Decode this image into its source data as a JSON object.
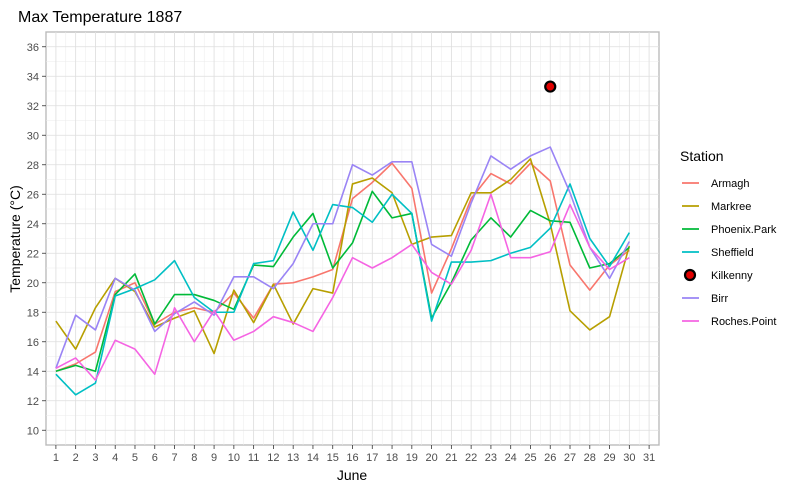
{
  "chart_data": {
    "type": "line",
    "title": "Max Temperature 1887",
    "xlabel": "June",
    "ylabel": "Temperature (°C)",
    "xlim": [
      0.5,
      31.5
    ],
    "ylim": [
      9,
      37
    ],
    "x_ticks": [
      1,
      2,
      3,
      4,
      5,
      6,
      7,
      8,
      9,
      10,
      11,
      12,
      13,
      14,
      15,
      16,
      17,
      18,
      19,
      20,
      21,
      22,
      23,
      24,
      25,
      26,
      27,
      28,
      29,
      30,
      31
    ],
    "y_ticks": [
      10,
      12,
      14,
      16,
      18,
      20,
      22,
      24,
      26,
      28,
      30,
      32,
      34,
      36
    ],
    "grid": true,
    "legend_position": "right",
    "legend_title": "Station",
    "x": [
      1,
      2,
      3,
      4,
      5,
      6,
      7,
      8,
      9,
      10,
      11,
      12,
      13,
      14,
      15,
      16,
      17,
      18,
      19,
      20,
      21,
      22,
      23,
      24,
      25,
      26,
      27,
      28,
      29,
      30
    ],
    "series": [
      {
        "name": "Armagh",
        "color": "#F8766D",
        "kind": "line",
        "values": [
          14.0,
          14.5,
          15.3,
          19.4,
          20.0,
          17.2,
          18.0,
          18.3,
          18.0,
          19.3,
          17.6,
          19.9,
          20.0,
          20.4,
          20.9,
          25.7,
          26.8,
          28.1,
          26.4,
          19.3,
          22.3,
          25.7,
          27.4,
          26.7,
          28.1,
          26.9,
          21.2,
          19.5,
          21.2,
          22.2
        ]
      },
      {
        "name": "Markree",
        "color": "#B79F00",
        "kind": "line",
        "values": [
          17.4,
          15.5,
          18.3,
          20.3,
          19.4,
          17.0,
          17.6,
          18.1,
          15.2,
          19.5,
          17.3,
          19.9,
          17.2,
          19.6,
          19.3,
          26.7,
          27.1,
          26.1,
          22.6,
          23.1,
          23.2,
          26.1,
          26.1,
          27.0,
          28.4,
          24.0,
          18.1,
          16.8,
          17.7,
          22.5
        ]
      },
      {
        "name": "Phoenix.Park",
        "color": "#00BA38",
        "kind": "line",
        "values": [
          14.0,
          14.4,
          14.0,
          19.2,
          20.6,
          17.2,
          19.2,
          19.2,
          18.8,
          18.2,
          21.2,
          21.1,
          23.1,
          24.7,
          21.0,
          22.7,
          26.2,
          24.4,
          24.7,
          17.6,
          20.0,
          22.9,
          24.4,
          23.1,
          24.9,
          24.2,
          24.1,
          21.0,
          21.3,
          22.4
        ]
      },
      {
        "name": "Sheffield",
        "color": "#00BFC4",
        "kind": "line",
        "values": [
          13.8,
          12.4,
          13.2,
          19.1,
          19.6,
          20.2,
          21.5,
          19.0,
          18.0,
          18.0,
          21.3,
          21.5,
          24.8,
          22.2,
          25.3,
          25.1,
          24.1,
          26.0,
          24.7,
          17.4,
          21.4,
          21.4,
          21.5,
          22.0,
          22.4,
          23.7,
          26.7,
          23.0,
          21.1,
          23.4
        ]
      },
      {
        "name": "Kilkenny",
        "color": "#000000",
        "fill": "#E00000",
        "kind": "point",
        "points": [
          {
            "x": 26,
            "y": 33.3
          }
        ]
      },
      {
        "name": "Birr",
        "color": "#9A84F5",
        "kind": "line",
        "values": [
          14.2,
          17.8,
          16.8,
          20.3,
          19.5,
          16.7,
          17.9,
          18.7,
          17.8,
          20.4,
          20.4,
          19.6,
          21.3,
          24.0,
          24.0,
          28.0,
          27.3,
          28.2,
          28.2,
          22.6,
          21.8,
          25.4,
          28.6,
          27.7,
          28.6,
          29.2,
          26.1,
          22.4,
          20.3,
          22.8
        ]
      },
      {
        "name": "Roches.Point",
        "color": "#F564E3",
        "kind": "line",
        "values": [
          14.2,
          14.9,
          13.4,
          16.1,
          15.5,
          13.8,
          18.3,
          16.0,
          18.1,
          16.1,
          16.7,
          17.7,
          17.3,
          16.7,
          19.0,
          21.7,
          21.0,
          21.7,
          22.6,
          20.7,
          19.9,
          22.2,
          26.0,
          21.7,
          21.7,
          22.1,
          25.3,
          22.4,
          20.9,
          21.7
        ]
      }
    ]
  }
}
